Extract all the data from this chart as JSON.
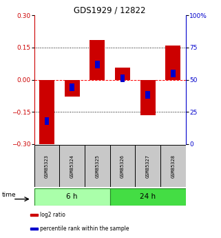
{
  "title": "GDS1929 / 12822",
  "samples": [
    "GSM85323",
    "GSM85324",
    "GSM85325",
    "GSM85326",
    "GSM85327",
    "GSM85328"
  ],
  "log2_ratio": [
    -0.305,
    -0.08,
    0.185,
    0.055,
    -0.165,
    0.16
  ],
  "percentile_rank": [
    18,
    44,
    62,
    51,
    38,
    55
  ],
  "groups": [
    {
      "label": "6 h",
      "indices": [
        0,
        1,
        2
      ],
      "color": "#AAFFAA"
    },
    {
      "label": "24 h",
      "indices": [
        3,
        4,
        5
      ],
      "color": "#44DD44"
    }
  ],
  "ylim_left": [
    -0.3,
    0.3
  ],
  "ylim_right": [
    0,
    100
  ],
  "bar_color_red": "#CC0000",
  "bar_color_blue": "#0000CC",
  "bar_width": 0.6,
  "hlines": [
    0.15,
    0.0,
    -0.15
  ],
  "hline_styles": [
    "dotted",
    "dashed",
    "dotted"
  ],
  "hline_colors": [
    "black",
    "red",
    "black"
  ],
  "left_axis_color": "#CC0000",
  "right_axis_color": "#0000CC",
  "time_label": "time",
  "legend_items": [
    "log2 ratio",
    "percentile rank within the sample"
  ],
  "legend_colors": [
    "#CC0000",
    "#0000CC"
  ],
  "figsize": [
    3.21,
    3.45
  ],
  "dpi": 100
}
